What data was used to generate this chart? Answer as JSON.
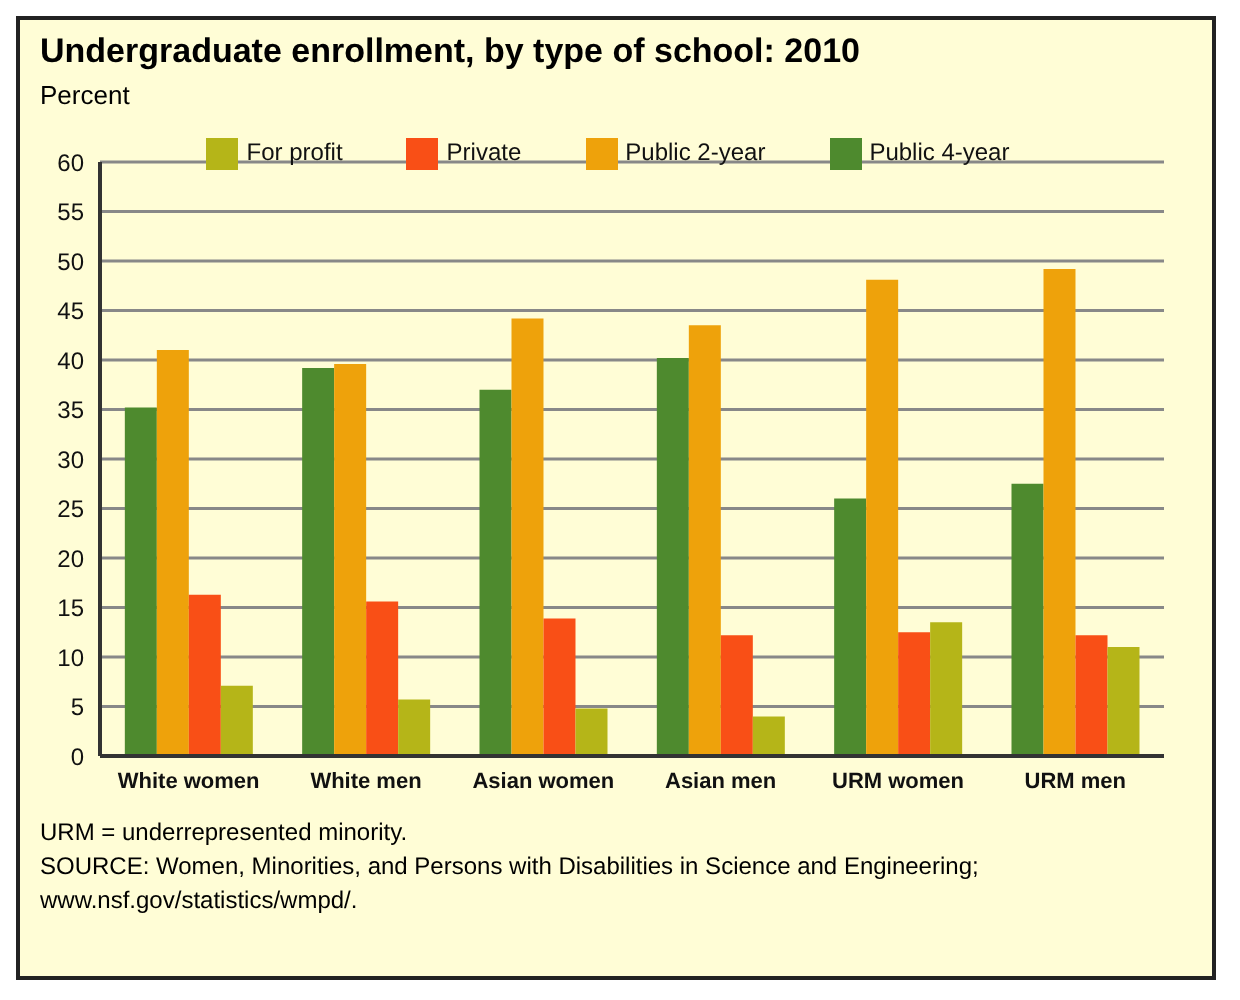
{
  "chart_data": {
    "type": "bar",
    "title": "Undergraduate enrollment, by type of school: 2010",
    "ylabel": "Percent",
    "categories": [
      "White women",
      "White men",
      "Asian women",
      "Asian men",
      "URM women",
      "URM men"
    ],
    "series": [
      {
        "name": "Public 4-year",
        "color": "#4e8a2e",
        "values": [
          35.2,
          39.2,
          37,
          40.2,
          26,
          27.5
        ]
      },
      {
        "name": "Public 2-year",
        "color": "#eea20b",
        "values": [
          41,
          39.6,
          44.2,
          43.5,
          48.1,
          49.2
        ]
      },
      {
        "name": "Private",
        "color": "#f94f16",
        "values": [
          16.3,
          15.6,
          13.9,
          12.2,
          12.5,
          12.2
        ]
      },
      {
        "name": "For profit",
        "color": "#b5b518",
        "values": [
          7.1,
          5.7,
          4.8,
          4,
          13.5,
          11
        ]
      }
    ],
    "ylim": [
      0,
      60
    ],
    "yticks": [
      0,
      5,
      10,
      15,
      20,
      25,
      30,
      35,
      40,
      45,
      50,
      55,
      60
    ],
    "grid": "y",
    "legend": "top",
    "annotations": [
      "URM = underrepresented minority.",
      "SOURCE: Women, Minorities, and Persons with Disabilities in Science and Engineering; www.nsf.gov/statistics/wmpd/."
    ]
  }
}
